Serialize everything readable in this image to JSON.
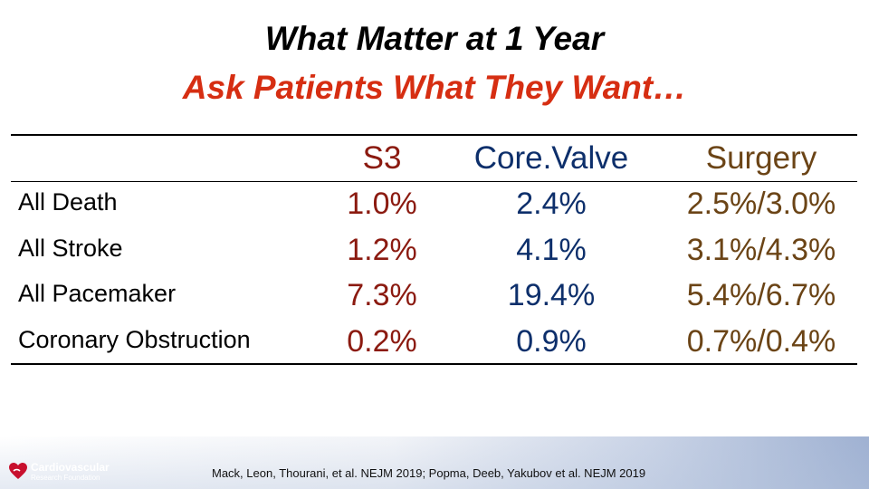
{
  "slide": {
    "title": "What Matter at 1 Year",
    "subtitle": "Ask Patients What They Want…",
    "subtitle_color": "#d62e12"
  },
  "table": {
    "columns": [
      {
        "label": "S3",
        "color": "#8b1a10"
      },
      {
        "label": "Core.Valve",
        "color": "#0d2f6b"
      },
      {
        "label": "Surgery",
        "color": "#6b4416"
      }
    ],
    "rows": [
      {
        "label": "All Death",
        "values": [
          "1.0%",
          "2.4%",
          "2.5%/3.0%"
        ]
      },
      {
        "label": "All Stroke",
        "values": [
          "1.2%",
          "4.1%",
          "3.1%/4.3%"
        ]
      },
      {
        "label": "All Pacemaker",
        "values": [
          "7.3%",
          "19.4%",
          "5.4%/6.7%"
        ]
      },
      {
        "label": "Coronary Obstruction",
        "values": [
          "0.2%",
          "0.9%",
          "0.7%/0.4%"
        ]
      }
    ]
  },
  "footer": {
    "logo_line1": "Cardiovascular",
    "logo_line2": "Research Foundation",
    "logo_icon": "heart-icon",
    "logo_color": "#c8102e",
    "citation": "Mack, Leon, Thourani, et al. NEJM 2019; Popma, Deeb, Yakubov et al. NEJM 2019"
  }
}
